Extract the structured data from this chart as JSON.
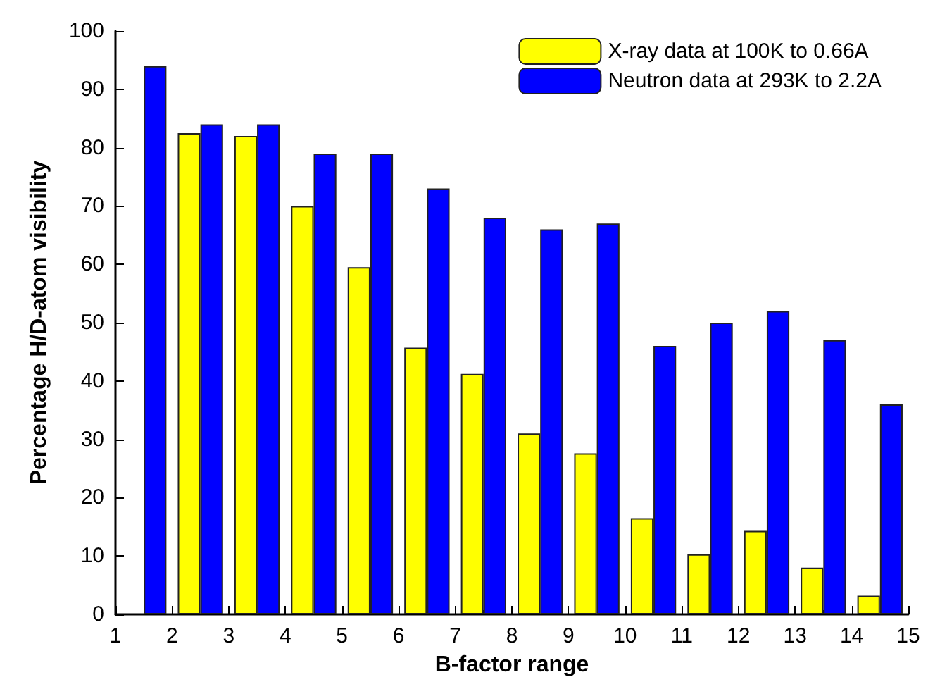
{
  "chart_data": {
    "type": "bar",
    "xlabel": "B-factor range",
    "ylabel": "Percentage H/D-atom visibility",
    "x": [
      1.5,
      2.5,
      3.5,
      4.5,
      5.5,
      6.5,
      7.5,
      8.5,
      9.5,
      10.5,
      11.5,
      12.5,
      13.5,
      14.5
    ],
    "series": [
      {
        "name": "X-ray data at 100K to 0.66A",
        "color": "#ffff00",
        "values": [
          null,
          82.5,
          82,
          70,
          59.5,
          45.7,
          41.2,
          31,
          27.6,
          16.5,
          10.3,
          14.3,
          8,
          3.2
        ]
      },
      {
        "name": "Neutron data at 293K to 2.2A",
        "color": "#0000ff",
        "values": [
          94,
          84,
          84,
          79,
          79,
          73,
          68,
          66,
          67,
          46,
          50,
          52,
          47,
          36
        ]
      }
    ],
    "xlim": [
      1,
      15
    ],
    "xticks": [
      1,
      2,
      3,
      4,
      5,
      6,
      7,
      8,
      9,
      10,
      11,
      12,
      13,
      14,
      15
    ],
    "ylim": [
      0,
      100
    ],
    "yticks": [
      0,
      10,
      20,
      30,
      40,
      50,
      60,
      70,
      80,
      90,
      100
    ],
    "grid": false,
    "legend": "top right"
  }
}
